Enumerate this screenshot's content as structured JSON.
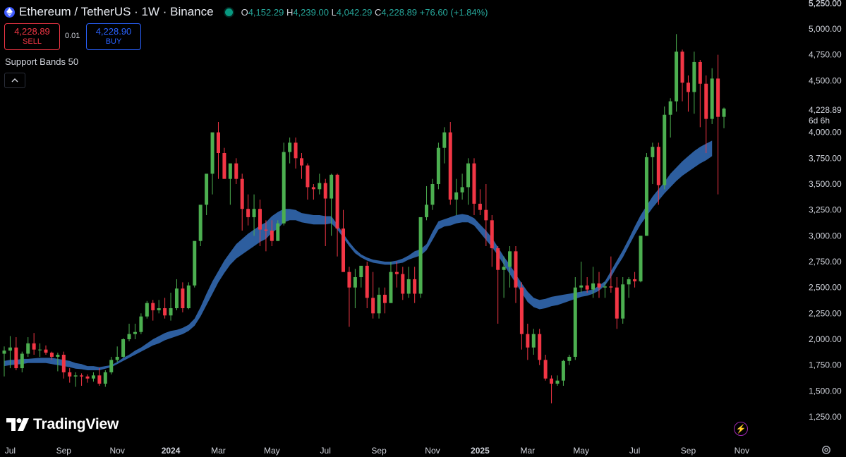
{
  "header": {
    "title": "Ethereum / TetherUS · 1W · Binance",
    "open_label": "O",
    "open": "4,152.29",
    "high_label": "H",
    "high": "4,239.00",
    "low_label": "L",
    "low": "4,042.29",
    "close_label": "C",
    "close": "4,228.89",
    "change": "+76.60 (+1.84%)"
  },
  "trade": {
    "sell_price": "4,228.89",
    "sell_label": "SELL",
    "spread": "0.01",
    "buy_price": "4,228.90",
    "buy_label": "BUY"
  },
  "indicator": {
    "name": "Support Bands 50"
  },
  "price_scale": {
    "current_price": "4,228.89",
    "countdown": "6d 6h"
  },
  "brand": {
    "name": "TradingView"
  },
  "colors": {
    "up": "#26a69a",
    "up_fill": "#4caf50",
    "down": "#f23645",
    "band": "#2f63a8",
    "accent": "#2962ff"
  },
  "icons": [
    "ethereum-icon",
    "live-status-icon",
    "chevron-up-icon",
    "tradingview-logo-icon",
    "lightning-icon",
    "gear-icon"
  ],
  "chart_data": {
    "type": "candlestick",
    "title": "Ethereum / TetherUS · 1W · Binance",
    "ylim": [
      1100,
      5300
    ],
    "y_ticks": [
      1250,
      1500,
      1750,
      2000,
      2250,
      2500,
      2750,
      3000,
      3250,
      3500,
      3750,
      4000,
      4250,
      4500,
      4750,
      5000,
      5250
    ],
    "y_tick_labels": [
      "1,250.00",
      "1,500.00",
      "1,750.00",
      "2,000.00",
      "2,250.00",
      "2,500.00",
      "2,750.00",
      "3,000.00",
      "3,250.00",
      "3,500.00",
      "3,750.00",
      "4,000.00",
      "4,250.00",
      "4,500.00",
      "4,750.00",
      "5,000.00",
      "5,250.00"
    ],
    "x_tick_labels": [
      "Jul",
      "Sep",
      "Nov",
      "2024",
      "Mar",
      "May",
      "Jul",
      "Sep",
      "Nov",
      "2025",
      "Mar",
      "May",
      "Jul",
      "Sep",
      "Nov"
    ],
    "x_tick_week_index": [
      1,
      10,
      19,
      28,
      36,
      45,
      54,
      63,
      72,
      80,
      88,
      97,
      106,
      115,
      124
    ],
    "grid": false,
    "candles_ohlc": [
      [
        1860,
        1930,
        1640,
        1890
      ],
      [
        1890,
        2030,
        1720,
        1920
      ],
      [
        1920,
        2020,
        1700,
        1720
      ],
      [
        1720,
        1880,
        1680,
        1860
      ],
      [
        1860,
        2020,
        1830,
        1960
      ],
      [
        1960,
        2060,
        1850,
        1900
      ],
      [
        1900,
        1960,
        1830,
        1900
      ],
      [
        1900,
        1940,
        1850,
        1870
      ],
      [
        1870,
        1880,
        1800,
        1830
      ],
      [
        1830,
        1870,
        1690,
        1850
      ],
      [
        1850,
        1880,
        1620,
        1680
      ],
      [
        1680,
        1720,
        1580,
        1640
      ],
      [
        1640,
        1680,
        1540,
        1650
      ],
      [
        1650,
        1670,
        1550,
        1640
      ],
      [
        1640,
        1660,
        1580,
        1620
      ],
      [
        1620,
        1680,
        1590,
        1650
      ],
      [
        1650,
        1720,
        1550,
        1570
      ],
      [
        1570,
        1700,
        1540,
        1680
      ],
      [
        1680,
        1830,
        1660,
        1800
      ],
      [
        1800,
        1930,
        1780,
        1830
      ],
      [
        1830,
        2010,
        1820,
        2000
      ],
      [
        2000,
        2150,
        1980,
        2050
      ],
      [
        2050,
        2150,
        2000,
        2070
      ],
      [
        2070,
        2250,
        2050,
        2220
      ],
      [
        2220,
        2370,
        2200,
        2350
      ],
      [
        2350,
        2380,
        2180,
        2280
      ],
      [
        2280,
        2380,
        2250,
        2300
      ],
      [
        2300,
        2400,
        2200,
        2230
      ],
      [
        2230,
        2450,
        2180,
        2300
      ],
      [
        2300,
        2580,
        2280,
        2490
      ],
      [
        2490,
        2550,
        2260,
        2300
      ],
      [
        2300,
        2550,
        2290,
        2520
      ],
      [
        2520,
        2930,
        2500,
        2950
      ],
      [
        2950,
        3150,
        2900,
        3300
      ],
      [
        3300,
        3550,
        3200,
        3600
      ],
      [
        3600,
        3850,
        3400,
        4000
      ],
      [
        4000,
        4100,
        3550,
        3800
      ],
      [
        3800,
        3850,
        3600,
        3550
      ],
      [
        3550,
        3650,
        3300,
        3700
      ],
      [
        3700,
        3750,
        3500,
        3550
      ],
      [
        3550,
        3600,
        3050,
        3260
      ],
      [
        3260,
        3400,
        3100,
        3180
      ],
      [
        3180,
        3400,
        3000,
        3260
      ],
      [
        3260,
        3350,
        2900,
        3060
      ],
      [
        3060,
        3150,
        2850,
        3050
      ],
      [
        3050,
        3150,
        2900,
        2950
      ],
      [
        2950,
        3150,
        2950,
        3120
      ],
      [
        3120,
        3900,
        3100,
        3810
      ],
      [
        3810,
        3950,
        3700,
        3900
      ],
      [
        3900,
        3950,
        3650,
        3750
      ],
      [
        3750,
        3800,
        3550,
        3680
      ],
      [
        3680,
        3700,
        3350,
        3470
      ],
      [
        3470,
        3500,
        3350,
        3450
      ],
      [
        3450,
        3600,
        3400,
        3510
      ],
      [
        3510,
        3550,
        2900,
        3360
      ],
      [
        3360,
        3600,
        3000,
        3590
      ],
      [
        3590,
        3600,
        2800,
        3070
      ],
      [
        3070,
        3250,
        2750,
        2650
      ],
      [
        2650,
        2700,
        2120,
        2500
      ],
      [
        2500,
        2680,
        2300,
        2600
      ],
      [
        2600,
        2700,
        2500,
        2710
      ],
      [
        2710,
        2750,
        2300,
        2400
      ],
      [
        2400,
        2650,
        2200,
        2250
      ],
      [
        2250,
        2500,
        2200,
        2430
      ],
      [
        2430,
        2500,
        2250,
        2350
      ],
      [
        2350,
        2750,
        2350,
        2650
      ],
      [
        2650,
        2750,
        2500,
        2630
      ],
      [
        2630,
        2700,
        2380,
        2440
      ],
      [
        2440,
        2700,
        2400,
        2580
      ],
      [
        2580,
        2700,
        2350,
        2440
      ],
      [
        2440,
        3000,
        2400,
        3180
      ],
      [
        3180,
        3480,
        3150,
        3300
      ],
      [
        3300,
        3550,
        3250,
        3500
      ],
      [
        3500,
        3900,
        3450,
        3850
      ],
      [
        3850,
        4050,
        3700,
        4000
      ],
      [
        4000,
        4100,
        3300,
        3350
      ],
      [
        3350,
        3550,
        3200,
        3420
      ],
      [
        3420,
        3600,
        3350,
        3470
      ],
      [
        3470,
        3750,
        3300,
        3700
      ],
      [
        3700,
        3750,
        3200,
        3310
      ],
      [
        3310,
        3450,
        3200,
        3250
      ],
      [
        3250,
        3500,
        2900,
        3150
      ],
      [
        3150,
        3200,
        2700,
        2880
      ],
      [
        2880,
        2900,
        2150,
        2670
      ],
      [
        2670,
        2800,
        2400,
        2700
      ],
      [
        2700,
        2900,
        2500,
        2850
      ],
      [
        2850,
        2900,
        2350,
        2500
      ],
      [
        2500,
        2550,
        1900,
        2050
      ],
      [
        2050,
        2150,
        1800,
        1920
      ],
      [
        1920,
        2100,
        1850,
        2050
      ],
      [
        2050,
        2100,
        1750,
        1800
      ],
      [
        1800,
        1850,
        1600,
        1620
      ],
      [
        1620,
        1650,
        1380,
        1570
      ],
      [
        1570,
        1650,
        1550,
        1600
      ],
      [
        1600,
        1800,
        1550,
        1790
      ],
      [
        1790,
        1850,
        1750,
        1830
      ],
      [
        1830,
        2600,
        1800,
        2500
      ],
      [
        2500,
        2750,
        2450,
        2520
      ],
      [
        2520,
        2600,
        2450,
        2480
      ],
      [
        2480,
        2700,
        2400,
        2540
      ],
      [
        2540,
        2650,
        2400,
        2500
      ],
      [
        2500,
        2550,
        2400,
        2510
      ],
      [
        2510,
        2800,
        2450,
        2500
      ],
      [
        2500,
        2600,
        2100,
        2200
      ],
      [
        2200,
        2600,
        2150,
        2530
      ],
      [
        2530,
        2600,
        2400,
        2580
      ],
      [
        2580,
        2650,
        2500,
        2560
      ],
      [
        2560,
        3000,
        2550,
        3000
      ],
      [
        3000,
        3800,
        3000,
        3760
      ],
      [
        3760,
        3900,
        3500,
        3860
      ],
      [
        3860,
        3900,
        3300,
        3490
      ],
      [
        3490,
        4250,
        3450,
        4170
      ],
      [
        4170,
        4330,
        3950,
        4300
      ],
      [
        4300,
        4950,
        4200,
        4780
      ],
      [
        4780,
        4800,
        4300,
        4480
      ],
      [
        4480,
        4550,
        4200,
        4390
      ],
      [
        4390,
        4780,
        4180,
        4680
      ],
      [
        4680,
        4700,
        4050,
        4470
      ],
      [
        4470,
        4550,
        3800,
        4130
      ],
      [
        4130,
        4620,
        4080,
        4520
      ],
      [
        4520,
        4750,
        3400,
        4150
      ],
      [
        4150,
        4240,
        4040,
        4230
      ]
    ],
    "band": {
      "name": "Support Bands 50",
      "upper": [
        1790,
        1800,
        1800,
        1810,
        1810,
        1815,
        1820,
        1820,
        1820,
        1810,
        1800,
        1790,
        1770,
        1760,
        1740,
        1740,
        1730,
        1740,
        1750,
        1780,
        1820,
        1850,
        1890,
        1920,
        1960,
        2000,
        2030,
        2060,
        2080,
        2090,
        2110,
        2140,
        2200,
        2310,
        2440,
        2560,
        2660,
        2760,
        2840,
        2920,
        2970,
        3020,
        3060,
        3100,
        3130,
        3190,
        3230,
        3260,
        3260,
        3250,
        3220,
        3210,
        3200,
        3200,
        3190,
        3190,
        3110,
        3020,
        2940,
        2870,
        2820,
        2790,
        2770,
        2760,
        2750,
        2750,
        2760,
        2780,
        2810,
        2850,
        2870,
        2920,
        3040,
        3140,
        3160,
        3180,
        3200,
        3210,
        3200,
        3170,
        3110,
        3050,
        2980,
        2890,
        2800,
        2720,
        2630,
        2540,
        2460,
        2400,
        2380,
        2390,
        2410,
        2420,
        2430,
        2440,
        2450,
        2460,
        2470,
        2480,
        2520,
        2560,
        2660,
        2760,
        2860,
        2970,
        3090,
        3200,
        3290,
        3380,
        3450,
        3520,
        3600,
        3660,
        3720,
        3770,
        3820,
        3860,
        3890,
        3920
      ],
      "lower": [
        1740,
        1750,
        1755,
        1760,
        1770,
        1770,
        1770,
        1770,
        1760,
        1750,
        1740,
        1730,
        1715,
        1710,
        1700,
        1700,
        1700,
        1715,
        1730,
        1760,
        1790,
        1820,
        1850,
        1880,
        1910,
        1940,
        1960,
        1990,
        2010,
        2030,
        2050,
        2080,
        2130,
        2220,
        2330,
        2440,
        2550,
        2640,
        2720,
        2780,
        2820,
        2860,
        2900,
        2940,
        2970,
        3030,
        3070,
        3130,
        3150,
        3150,
        3130,
        3120,
        3110,
        3110,
        3110,
        3120,
        3060,
        2980,
        2900,
        2830,
        2790,
        2760,
        2740,
        2730,
        2720,
        2720,
        2730,
        2740,
        2770,
        2790,
        2810,
        2860,
        2960,
        3060,
        3090,
        3100,
        3120,
        3130,
        3130,
        3100,
        3030,
        2960,
        2890,
        2810,
        2720,
        2630,
        2540,
        2450,
        2360,
        2310,
        2290,
        2300,
        2320,
        2330,
        2350,
        2370,
        2390,
        2410,
        2420,
        2440,
        2470,
        2520,
        2600,
        2700,
        2790,
        2900,
        3010,
        3110,
        3190,
        3270,
        3340,
        3410,
        3470,
        3530,
        3580,
        3620,
        3660,
        3700,
        3730,
        3770
      ]
    }
  }
}
